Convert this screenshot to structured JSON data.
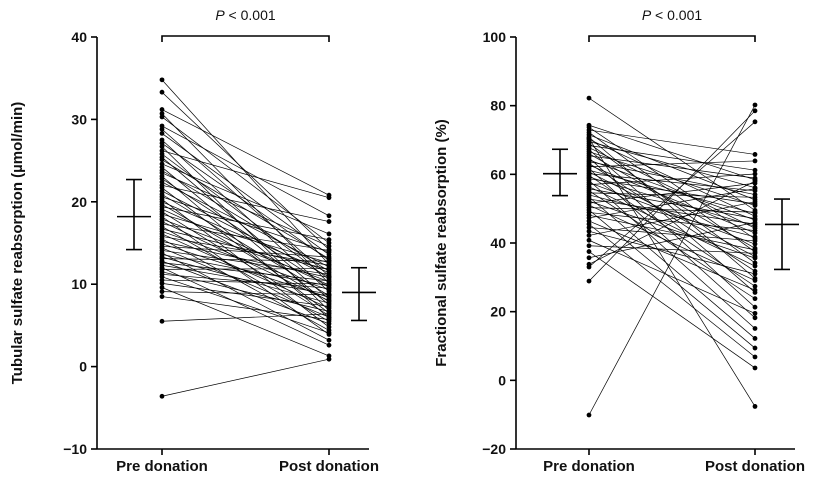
{
  "chart_data": [
    {
      "type": "scatter",
      "subtype": "paired-dot-plot",
      "ylabel": "Tubular sulfate reabsorption (µmol/min)",
      "ylim": [
        -10,
        40
      ],
      "yticks": [
        -10,
        0,
        10,
        20,
        30,
        40
      ],
      "categories": [
        "Pre donation",
        "Post donation"
      ],
      "significance": {
        "p_italic": "P",
        "rest": " < 0.001"
      },
      "summary": [
        {
          "category": "Pre donation",
          "median": 18.2,
          "iqr": [
            14.2,
            22.7
          ]
        },
        {
          "category": "Post donation",
          "median": 9.0,
          "iqr": [
            5.6,
            12.0
          ]
        }
      ],
      "pairs": [
        [
          34.8,
          12.4
        ],
        [
          33.3,
          14.2
        ],
        [
          31.2,
          20.8
        ],
        [
          30.7,
          10.1
        ],
        [
          30.3,
          15.0
        ],
        [
          29.2,
          18.3
        ],
        [
          28.8,
          11.0
        ],
        [
          28.3,
          13.6
        ],
        [
          27.5,
          9.1
        ],
        [
          27.1,
          12.9
        ],
        [
          26.7,
          6.8
        ],
        [
          26.2,
          20.5
        ],
        [
          25.8,
          10.6
        ],
        [
          25.4,
          8.2
        ],
        [
          25.1,
          13.1
        ],
        [
          24.6,
          16.1
        ],
        [
          24.2,
          7.5
        ],
        [
          23.8,
          11.6
        ],
        [
          23.5,
          14.6
        ],
        [
          23.1,
          5.9
        ],
        [
          22.8,
          9.6
        ],
        [
          22.4,
          12.1
        ],
        [
          22.0,
          17.6
        ],
        [
          21.7,
          6.5
        ],
        [
          21.3,
          10.9
        ],
        [
          20.9,
          8.6
        ],
        [
          20.6,
          13.9
        ],
        [
          20.3,
          4.8
        ],
        [
          20.0,
          11.4
        ],
        [
          19.7,
          7.9
        ],
        [
          19.4,
          15.4
        ],
        [
          19.1,
          9.9
        ],
        [
          18.8,
          6.2
        ],
        [
          18.5,
          12.6
        ],
        [
          18.2,
          3.9
        ],
        [
          17.9,
          10.3
        ],
        [
          17.6,
          8.0
        ],
        [
          17.3,
          14.1
        ],
        [
          17.0,
          5.5
        ],
        [
          16.7,
          11.8
        ],
        [
          16.4,
          9.3
        ],
        [
          16.1,
          7.1
        ],
        [
          15.8,
          12.3
        ],
        [
          15.5,
          4.4
        ],
        [
          15.2,
          10.8
        ],
        [
          14.9,
          8.4
        ],
        [
          14.6,
          13.3
        ],
        [
          14.4,
          6.0
        ],
        [
          14.1,
          11.2
        ],
        [
          13.8,
          3.2
        ],
        [
          13.6,
          9.8
        ],
        [
          13.3,
          7.7
        ],
        [
          13.1,
          12.8
        ],
        [
          12.8,
          5.2
        ],
        [
          12.6,
          10.4
        ],
        [
          12.3,
          8.8
        ],
        [
          12.0,
          2.6
        ],
        [
          11.8,
          11.9
        ],
        [
          11.5,
          6.7
        ],
        [
          11.2,
          9.5
        ],
        [
          10.9,
          4.1
        ],
        [
          10.5,
          10.0
        ],
        [
          10.1,
          7.3
        ],
        [
          9.6,
          1.3
        ],
        [
          9.1,
          8.7
        ],
        [
          8.5,
          5.7
        ],
        [
          5.5,
          6.4
        ],
        [
          -3.6,
          0.9
        ]
      ]
    },
    {
      "type": "scatter",
      "subtype": "paired-dot-plot",
      "ylabel": "Fractional sulfate reabsorption (%)",
      "ylim": [
        -20,
        100
      ],
      "yticks": [
        -20,
        0,
        20,
        40,
        60,
        80,
        100
      ],
      "categories": [
        "Pre donation",
        "Post donation"
      ],
      "significance": {
        "p_italic": "P",
        "rest": " < 0.001"
      },
      "summary": [
        {
          "category": "Pre donation",
          "median": 60.2,
          "iqr": [
            53.8,
            67.3
          ]
        },
        {
          "category": "Post donation",
          "median": 45.4,
          "iqr": [
            32.3,
            52.8
          ]
        }
      ],
      "pairs": [
        [
          82.2,
          49.5
        ],
        [
          74.3,
          58.4
        ],
        [
          73.7,
          41.2
        ],
        [
          72.9,
          65.8
        ],
        [
          72.2,
          37.4
        ],
        [
          71.5,
          52.6
        ],
        [
          70.8,
          29.7
        ],
        [
          70.2,
          47.8
        ],
        [
          69.6,
          56.1
        ],
        [
          69.0,
          34.2
        ],
        [
          68.4,
          61.2
        ],
        [
          67.8,
          44.3
        ],
        [
          67.2,
          25.6
        ],
        [
          66.6,
          50.9
        ],
        [
          66.0,
          38.5
        ],
        [
          65.4,
          58.9
        ],
        [
          64.8,
          21.3
        ],
        [
          64.2,
          46.7
        ],
        [
          63.7,
          54.1
        ],
        [
          63.2,
          31.8
        ],
        [
          62.7,
          42.9
        ],
        [
          62.2,
          63.9
        ],
        [
          61.7,
          18.2
        ],
        [
          61.2,
          48.6
        ],
        [
          60.7,
          36.1
        ],
        [
          60.2,
          55.2
        ],
        [
          59.7,
          27.4
        ],
        [
          59.2,
          44.9
        ],
        [
          58.7,
          51.4
        ],
        [
          58.2,
          15.1
        ],
        [
          57.6,
          39.7
        ],
        [
          57.0,
          60.1
        ],
        [
          56.4,
          33.3
        ],
        [
          55.8,
          47.1
        ],
        [
          55.2,
          23.8
        ],
        [
          54.6,
          53.3
        ],
        [
          54.0,
          41.8
        ],
        [
          53.4,
          12.2
        ],
        [
          52.8,
          45.5
        ],
        [
          52.2,
          35.6
        ],
        [
          51.6,
          57.4
        ],
        [
          51.0,
          29.1
        ],
        [
          50.3,
          49.0
        ],
        [
          49.6,
          9.4
        ],
        [
          48.9,
          43.6
        ],
        [
          48.1,
          38.0
        ],
        [
          47.3,
          55.8
        ],
        [
          46.4,
          26.3
        ],
        [
          45.5,
          6.8
        ],
        [
          44.5,
          40.6
        ],
        [
          43.4,
          31.0
        ],
        [
          42.2,
          52.0
        ],
        [
          40.8,
          19.5
        ],
        [
          39.2,
          37.0
        ],
        [
          37.5,
          3.6
        ],
        [
          35.7,
          46.0
        ],
        [
          33.8,
          58.0
        ],
        [
          33.0,
          75.3
        ],
        [
          28.9,
          78.5
        ],
        [
          -10.1,
          80.2
        ],
        [
          70.5,
          -7.6
        ]
      ]
    }
  ]
}
